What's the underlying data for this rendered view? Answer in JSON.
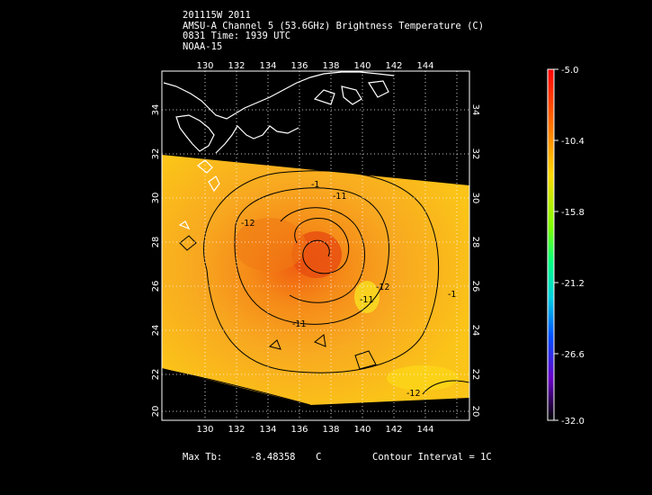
{
  "header": {
    "line1": "201115W 2011",
    "line2": "AMSU-A Channel 5 (53.6GHz) Brightness Temperature (C)",
    "line3": "0831 Time: 1939 UTC",
    "line4": "NOAA-15"
  },
  "footer": {
    "max_label": "Max Tb:",
    "max_value": "-8.48358",
    "max_unit": "C",
    "contour_interval": "Contour Interval = 1C"
  },
  "map": {
    "lon_ticks": [
      "130",
      "132",
      "134",
      "136",
      "138",
      "140",
      "142",
      "144"
    ],
    "lat_ticks": [
      "34",
      "32",
      "30",
      "28",
      "26",
      "24",
      "22",
      "20"
    ],
    "contour_labels": [
      "-11",
      "-11",
      "-11",
      "-12",
      "-12",
      "-12",
      "-1",
      "-1"
    ]
  },
  "colorbar": {
    "ticks": [
      "-5.0",
      "-10.4",
      "-15.8",
      "-21.2",
      "-26.6",
      "-32.0"
    ],
    "colors": [
      "#ff0000",
      "#ff7a00",
      "#ffd800",
      "#7cff00",
      "#00d0d0",
      "#0050ff",
      "#6a00c8",
      "#000000"
    ]
  }
}
